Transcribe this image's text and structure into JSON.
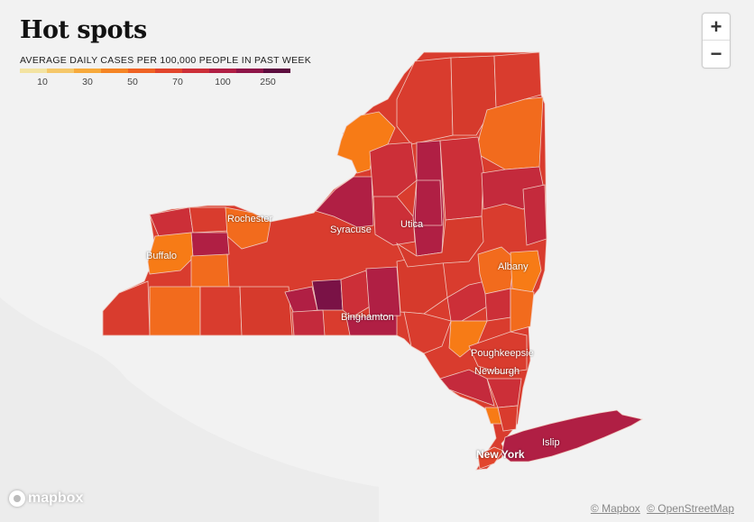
{
  "title": "Hot spots",
  "legend": {
    "caption": "AVERAGE DAILY CASES PER 100,000 PEOPLE IN PAST WEEK",
    "colors": [
      "#f3e3a1",
      "#f5c769",
      "#f7a93b",
      "#f58424",
      "#ef6224",
      "#e2452c",
      "#cc2f38",
      "#b01f44",
      "#8e1548",
      "#5c0c3e"
    ],
    "ticks": [
      "10",
      "30",
      "50",
      "70",
      "100",
      "250"
    ]
  },
  "zoom": {
    "in": "+",
    "out": "−"
  },
  "cities": {
    "rochester": "Rochester",
    "buffalo": "Buffalo",
    "syracuse": "Syracuse",
    "utica": "Utica",
    "albany": "Albany",
    "binghamton": "Binghamton",
    "poughkeepsie": "Poughkeepsie",
    "newburgh": "Newburgh",
    "new_york": "New York",
    "islip": "Islip"
  },
  "attribution": {
    "mapbox": "© Mapbox",
    "osm": "© OpenStreetMap"
  },
  "logo": "mapbox",
  "colors": {
    "state_default": "#d93c2e",
    "dark": "#b01f44",
    "darkest": "#7a1246",
    "orange": "#f26b1d",
    "bright_orange": "#f77b16",
    "border": "#f0c9c0"
  }
}
